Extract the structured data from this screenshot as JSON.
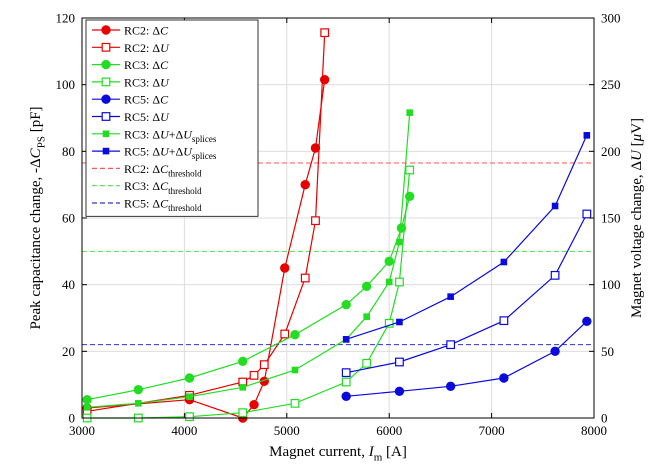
{
  "chart_data": {
    "type": "line",
    "xlabel": "Magnet current, I_m [A]",
    "ylabel": "Peak capacitance change, -ΔC_PS [pF]",
    "y2label": "Magnet voltage change, ΔU [μV]",
    "xlim": [
      3000,
      8000
    ],
    "ylim": [
      0,
      120
    ],
    "y2lim": [
      0,
      300
    ],
    "x_ticks": [
      "3000",
      "4000",
      "5000",
      "6000",
      "7000",
      "8000"
    ],
    "y_ticks": [
      "0",
      "20",
      "40",
      "60",
      "80",
      "100",
      "120"
    ],
    "y2_ticks": [
      "0",
      "50",
      "100",
      "150",
      "200",
      "250",
      "300"
    ],
    "grid": true,
    "legend_position": "top-left",
    "series": [
      {
        "name": "RC2: ΔC",
        "color": "#e60000",
        "marker": "filled-circle",
        "axis": "left",
        "x": [
          3050,
          4050,
          4570,
          4680,
          4780,
          4980,
          5180,
          5280,
          5370
        ],
        "y": [
          3,
          5.5,
          0,
          4,
          11,
          45,
          70,
          81,
          101.5
        ]
      },
      {
        "name": "RC2: ΔU",
        "color": "#e60000",
        "marker": "open-square",
        "axis": "right",
        "x": [
          3050,
          4050,
          4570,
          4680,
          4780,
          4980,
          5180,
          5280,
          5370
        ],
        "y": [
          5,
          17,
          27,
          32,
          40,
          63,
          105,
          148,
          289
        ]
      },
      {
        "name": "RC3: ΔC",
        "color": "#22dd22",
        "marker": "filled-circle",
        "axis": "left",
        "x": [
          3050,
          3550,
          4050,
          4570,
          5080,
          5580,
          5780,
          6000,
          6120,
          6200
        ],
        "y": [
          5.5,
          8.5,
          12,
          17,
          25,
          34,
          39.5,
          47,
          57,
          66.5
        ]
      },
      {
        "name": "RC3: ΔU",
        "color": "#22dd22",
        "marker": "open-square",
        "axis": "right",
        "x": [
          3050,
          3550,
          4050,
          4570,
          5080,
          5580,
          5780,
          6000,
          6100,
          6200
        ],
        "y": [
          0,
          0,
          1,
          4,
          11,
          27,
          41,
          71,
          102,
          186
        ]
      },
      {
        "name": "RC5: ΔC",
        "color": "#0a0add",
        "marker": "filled-circle",
        "axis": "left",
        "x": [
          5580,
          6100,
          6600,
          7120,
          7620,
          7930
        ],
        "y": [
          6.5,
          8,
          9.5,
          12,
          20,
          29
        ]
      },
      {
        "name": "RC5: ΔU",
        "color": "#0a0add",
        "marker": "open-square",
        "axis": "right",
        "x": [
          5580,
          6100,
          6600,
          7120,
          7620,
          7930
        ],
        "y": [
          34,
          42,
          55,
          73,
          107,
          153
        ]
      },
      {
        "name": "RC3: ΔU+ΔU_splices",
        "color": "#22dd22",
        "marker": "filled-square",
        "axis": "right",
        "x": [
          3050,
          3550,
          4050,
          4570,
          5080,
          5580,
          5780,
          6000,
          6100,
          6200
        ],
        "y": [
          8,
          11,
          16,
          23,
          36,
          59,
          76,
          102,
          132,
          229
        ]
      },
      {
        "name": "RC5: ΔU+ΔU_splices",
        "color": "#0a0add",
        "marker": "filled-square",
        "axis": "right",
        "x": [
          5580,
          6100,
          6600,
          7120,
          7620,
          7930
        ],
        "y": [
          59,
          72,
          91,
          117,
          159,
          212
        ]
      }
    ],
    "thresholds": [
      {
        "name": "RC2: ΔC_threshold",
        "color": "#ff5555",
        "y": 76.5
      },
      {
        "name": "RC3: ΔC_threshold",
        "color": "#55dd55",
        "y": 50
      },
      {
        "name": "RC5: ΔC_threshold",
        "color": "#3333cc",
        "y": 22
      }
    ]
  }
}
